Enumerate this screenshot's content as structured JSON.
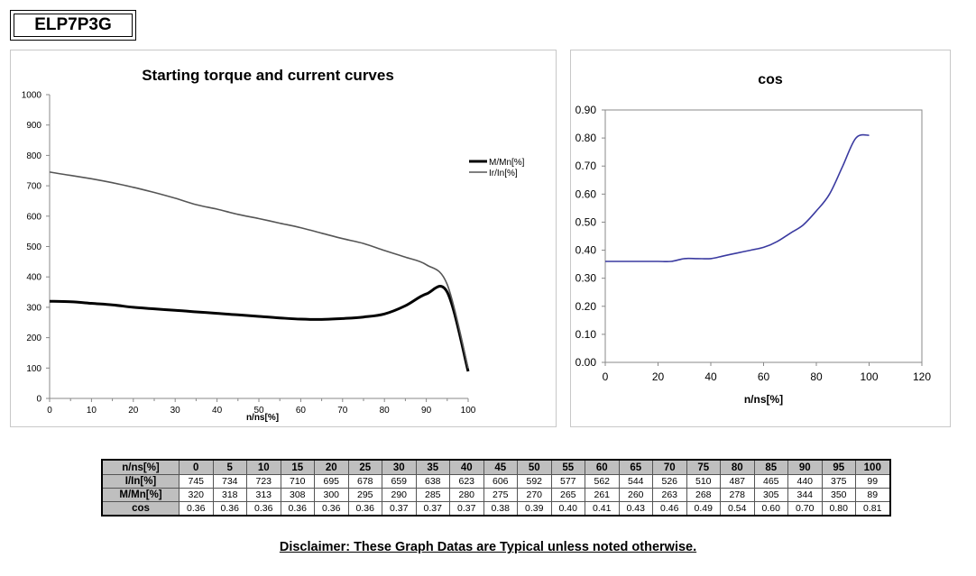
{
  "model": "ELP7P3G",
  "chart_data": [
    {
      "type": "line",
      "title": "Starting torque and current curves",
      "xlabel": "n/ns[%]",
      "ylabel": "",
      "xlim": [
        0,
        100
      ],
      "ylim": [
        0,
        1000
      ],
      "xticks": [
        "0",
        "10",
        "20",
        "30",
        "40",
        "50",
        "60",
        "70",
        "80",
        "90",
        "100"
      ],
      "yticks": [
        "0",
        "100",
        "200",
        "300",
        "400",
        "500",
        "600",
        "700",
        "800",
        "900",
        "1000"
      ],
      "grid": false,
      "legend_position": "right",
      "x": [
        0,
        5,
        10,
        15,
        20,
        25,
        30,
        35,
        40,
        45,
        50,
        55,
        60,
        65,
        70,
        75,
        80,
        85,
        90,
        95,
        100
      ],
      "series": [
        {
          "name": "M/Mn[%]",
          "color": "#000000",
          "values": [
            320,
            318,
            313,
            308,
            300,
            295,
            290,
            285,
            280,
            275,
            270,
            265,
            261,
            260,
            263,
            268,
            278,
            305,
            344,
            350,
            89
          ]
        },
        {
          "name": "Ir/In[%]",
          "color": "#555555",
          "values": [
            745,
            734,
            723,
            710,
            695,
            678,
            659,
            638,
            623,
            606,
            592,
            577,
            562,
            544,
            526,
            510,
            487,
            465,
            440,
            375,
            99
          ]
        }
      ]
    },
    {
      "type": "line",
      "title": "cos",
      "xlabel": "n/ns[%]",
      "ylabel": "",
      "xlim": [
        0,
        120
      ],
      "ylim": [
        0,
        0.9
      ],
      "xticks": [
        "0",
        "20",
        "40",
        "60",
        "80",
        "100",
        "120"
      ],
      "yticks": [
        "0.00",
        "0.10",
        "0.20",
        "0.30",
        "0.40",
        "0.50",
        "0.60",
        "0.70",
        "0.80",
        "0.90"
      ],
      "grid": false,
      "x": [
        0,
        5,
        10,
        15,
        20,
        25,
        30,
        35,
        40,
        45,
        50,
        55,
        60,
        65,
        70,
        75,
        80,
        85,
        90,
        95,
        100
      ],
      "series": [
        {
          "name": "",
          "color": "#3a3aa0",
          "values": [
            0.36,
            0.36,
            0.36,
            0.36,
            0.36,
            0.36,
            0.37,
            0.37,
            0.37,
            0.38,
            0.39,
            0.4,
            0.41,
            0.43,
            0.46,
            0.49,
            0.54,
            0.6,
            0.7,
            0.8,
            0.81
          ]
        }
      ]
    }
  ],
  "table": {
    "header_label": "n/ns[%]",
    "columns": [
      "0",
      "5",
      "10",
      "15",
      "20",
      "25",
      "30",
      "35",
      "40",
      "45",
      "50",
      "55",
      "60",
      "65",
      "70",
      "75",
      "80",
      "85",
      "90",
      "95",
      "100"
    ],
    "rows": [
      {
        "label": "I/In[%]",
        "values": [
          "745",
          "734",
          "723",
          "710",
          "695",
          "678",
          "659",
          "638",
          "623",
          "606",
          "592",
          "577",
          "562",
          "544",
          "526",
          "510",
          "487",
          "465",
          "440",
          "375",
          "99"
        ]
      },
      {
        "label": "M/Mn[%]",
        "values": [
          "320",
          "318",
          "313",
          "308",
          "300",
          "295",
          "290",
          "285",
          "280",
          "275",
          "270",
          "265",
          "261",
          "260",
          "263",
          "268",
          "278",
          "305",
          "344",
          "350",
          "89"
        ]
      },
      {
        "label": "cos",
        "values": [
          "0.36",
          "0.36",
          "0.36",
          "0.36",
          "0.36",
          "0.36",
          "0.37",
          "0.37",
          "0.37",
          "0.38",
          "0.39",
          "0.40",
          "0.41",
          "0.43",
          "0.46",
          "0.49",
          "0.54",
          "0.60",
          "0.70",
          "0.80",
          "0.81"
        ]
      }
    ]
  },
  "disclaimer": "Disclaimer: These Graph Datas are Typical unless noted otherwise."
}
